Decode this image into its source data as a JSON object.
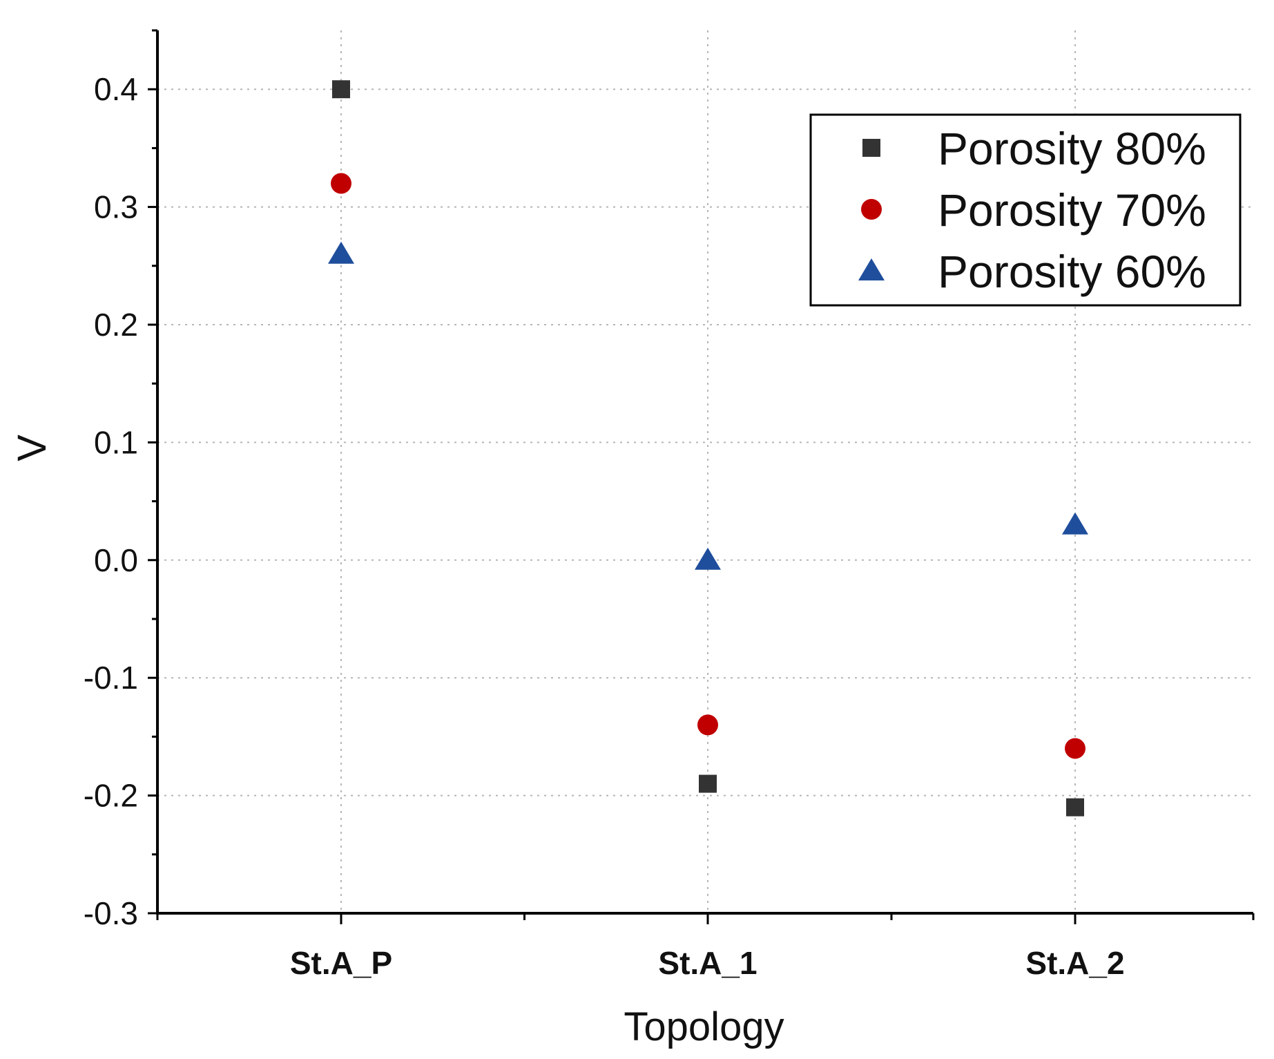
{
  "chart_data": {
    "type": "scatter",
    "title": "",
    "xlabel": "Topology",
    "ylabel": "V",
    "categories": [
      "St.A_P",
      "St.A_1",
      "St.A_2"
    ],
    "ylim": [
      -0.3,
      0.45
    ],
    "yticks": [
      -0.3,
      -0.2,
      -0.1,
      0.0,
      0.1,
      0.2,
      0.3,
      0.4
    ],
    "ytick_labels": [
      "-0.3",
      "-0.2",
      "-0.1",
      "0.0",
      "0.1",
      "0.2",
      "0.3",
      "0.4"
    ],
    "grid": true,
    "legend_position": "top-right",
    "series": [
      {
        "name": "Porosity 80%",
        "marker": "square",
        "color": "#333333",
        "values": [
          0.4,
          -0.19,
          -0.21
        ]
      },
      {
        "name": "Porosity 70%",
        "marker": "circle",
        "color": "#c00000",
        "values": [
          0.32,
          -0.14,
          -0.16
        ]
      },
      {
        "name": "Porosity 60%",
        "marker": "triangle",
        "color": "#1f4e9c",
        "values": [
          0.26,
          0.0,
          0.03
        ]
      }
    ]
  }
}
